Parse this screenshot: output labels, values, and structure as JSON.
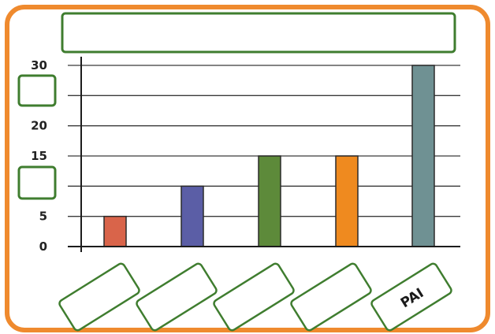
{
  "chart_data": {
    "type": "bar",
    "title": "",
    "xlabel": "",
    "ylabel": "",
    "ylim": [
      0,
      30
    ],
    "yticks": [
      {
        "value": 0,
        "label": "0"
      },
      {
        "value": 5,
        "label": "5"
      },
      {
        "value": 10,
        "label": ""
      },
      {
        "value": 15,
        "label": "15"
      },
      {
        "value": 20,
        "label": "20"
      },
      {
        "value": 25,
        "label": ""
      },
      {
        "value": 30,
        "label": "30"
      }
    ],
    "grid": true,
    "categories": [
      "",
      "",
      "",
      "",
      "PAI"
    ],
    "values": [
      5,
      10,
      15,
      15,
      30
    ],
    "bar_colors": [
      "#d9644a",
      "#5b5ea6",
      "#5d8a3a",
      "#ef8a1f",
      "#6f9193"
    ],
    "frame_color": "#ef8a2e",
    "box_color": "#3f7d2f"
  }
}
